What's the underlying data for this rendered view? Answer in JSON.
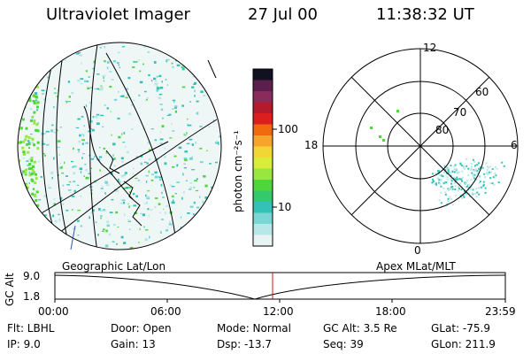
{
  "header": {
    "title": "Ultraviolet Imager",
    "date": "27 Jul 00",
    "time": "11:38:32 UT"
  },
  "colorbar": {
    "unit_label": "photon cm⁻²s⁻¹",
    "ticks": [
      "100",
      "10"
    ],
    "colors": [
      "#111122",
      "#5a1f4c",
      "#8a2b5b",
      "#b31b2c",
      "#db1e1e",
      "#f26a10",
      "#f7a52a",
      "#f2d635",
      "#d8ec3a",
      "#9ae641",
      "#4fd63a",
      "#34c96a",
      "#34c2b7",
      "#79d6d4",
      "#b7e7e6",
      "#e8f4f4"
    ]
  },
  "left_panel": {
    "caption": "Geographic Lat/Lon"
  },
  "right_panel": {
    "caption": "Apex MLat/MLT",
    "mlt_labels": [
      "12",
      "18",
      "6",
      "0"
    ],
    "mlat_labels": [
      "60",
      "70",
      "80"
    ]
  },
  "timeline": {
    "ylabel": "GC Alt",
    "y_ticks": [
      "9.0",
      "1.8"
    ],
    "x_ticks": [
      "00:00",
      "06:00",
      "12:00",
      "18:00",
      "23:59"
    ]
  },
  "status": {
    "flt": "Flt: LBHL",
    "ip": "IP:  9.0",
    "door": "Door: Open",
    "gain": "Gain: 13",
    "mode": "Mode: Normal",
    "dsp": "Dsp:  -13.7",
    "gc_alt": "GC Alt: 3.5 Re",
    "seq": "Seq: 39",
    "glat": "GLat: -75.9",
    "glon": "GLon: 211.9"
  },
  "accent_colors": {
    "cursor_line": "#d01010",
    "speckle_a": "#34c2b7",
    "speckle_b": "#4fd63a",
    "speckle_c": "#b7e7e6"
  }
}
